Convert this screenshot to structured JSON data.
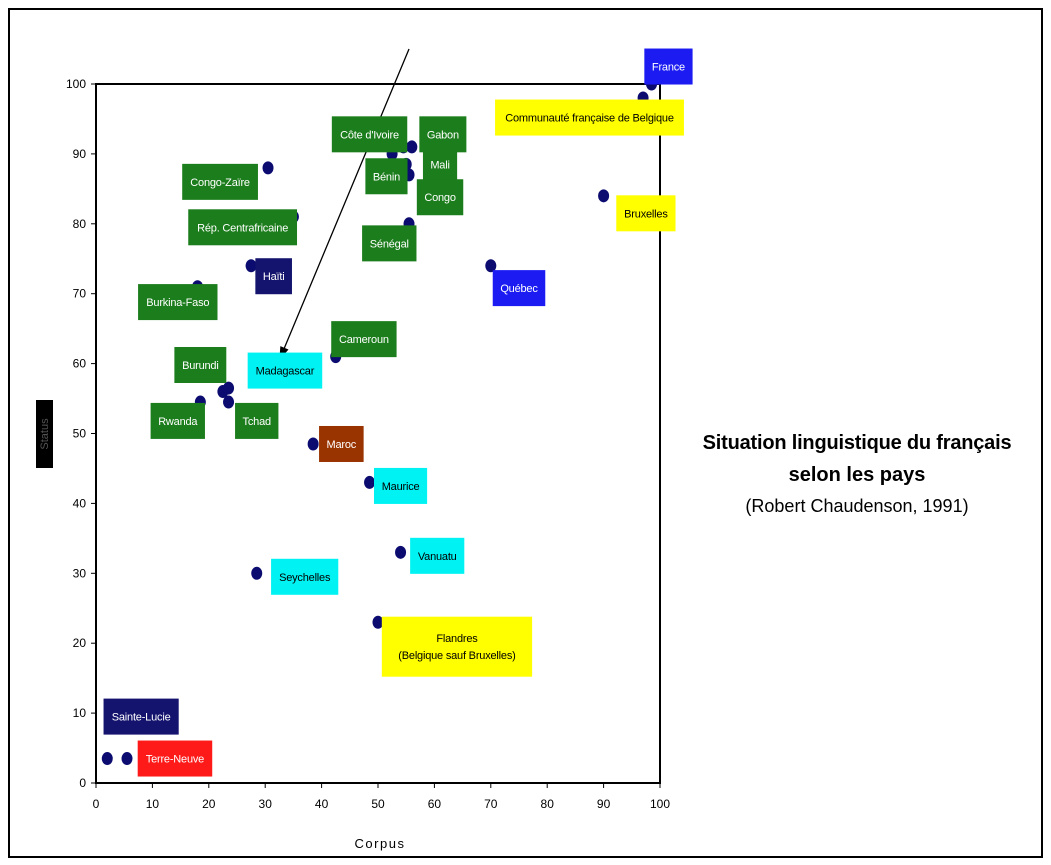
{
  "chart_data": {
    "type": "scatter",
    "title_lines": [
      "Situation linguistique du français",
      "selon les pays"
    ],
    "source": "(Robert Chaudenson, 1991)",
    "xlabel": "Corpus",
    "ylabel": "Status",
    "xlim": [
      0,
      100
    ],
    "ylim": [
      0,
      100
    ],
    "xticks": [
      0,
      10,
      20,
      30,
      40,
      50,
      60,
      70,
      80,
      90,
      100
    ],
    "yticks": [
      0,
      10,
      20,
      30,
      40,
      50,
      60,
      70,
      80,
      90,
      100
    ],
    "grid": false,
    "point_color": "#0b0b70",
    "category_colors": {
      "green": "#1c7d1c",
      "navy": "#14146e",
      "blue": "#1c1cf2",
      "yellow": "#ffff00",
      "cyan": "#00f2f2",
      "brown": "#993300",
      "red": "#ff1a1a"
    },
    "points": [
      {
        "x": 2,
        "y": 3.5
      },
      {
        "x": 5.5,
        "y": 3.5
      },
      {
        "x": 18,
        "y": 71
      },
      {
        "x": 18.5,
        "y": 54.5
      },
      {
        "x": 22.5,
        "y": 56
      },
      {
        "x": 23.5,
        "y": 56.5
      },
      {
        "x": 23.5,
        "y": 54.5
      },
      {
        "x": 27.5,
        "y": 74
      },
      {
        "x": 28.5,
        "y": 30
      },
      {
        "x": 30.5,
        "y": 88
      },
      {
        "x": 35,
        "y": 81
      },
      {
        "x": 38.5,
        "y": 48.5
      },
      {
        "x": 42.5,
        "y": 61
      },
      {
        "x": 48.5,
        "y": 43
      },
      {
        "x": 50,
        "y": 23
      },
      {
        "x": 52.5,
        "y": 90
      },
      {
        "x": 54,
        "y": 33
      },
      {
        "x": 54.5,
        "y": 91
      },
      {
        "x": 55,
        "y": 88.5
      },
      {
        "x": 55.5,
        "y": 87
      },
      {
        "x": 55.5,
        "y": 80
      },
      {
        "x": 56,
        "y": 91
      },
      {
        "x": 70,
        "y": 74
      },
      {
        "x": 90,
        "y": 84
      },
      {
        "x": 97,
        "y": 98
      },
      {
        "x": 98.5,
        "y": 100
      }
    ],
    "labels": [
      {
        "text": "France",
        "color": "blue",
        "anchor": [
          101.5,
          102.5
        ]
      },
      {
        "text": "Communauté française de Belgique",
        "color": "yellow",
        "anchor": [
          87.5,
          95.2
        ]
      },
      {
        "text": "Côte d'Ivoire",
        "color": "green",
        "anchor": [
          48.5,
          92.8
        ]
      },
      {
        "text": "Gabon",
        "color": "green",
        "anchor": [
          61.5,
          92.8
        ]
      },
      {
        "text": "Mali",
        "color": "green",
        "anchor": [
          61,
          88.5
        ]
      },
      {
        "text": "Bénin",
        "color": "green",
        "anchor": [
          51.5,
          86.8
        ]
      },
      {
        "text": "Congo",
        "color": "green",
        "anchor": [
          61,
          83.8
        ]
      },
      {
        "text": "Congo-Zaïre",
        "color": "green",
        "anchor": [
          22,
          86
        ]
      },
      {
        "text": "Bruxelles",
        "color": "yellow",
        "anchor": [
          97.5,
          81.5
        ]
      },
      {
        "text": "Rép. Centrafricaine",
        "color": "green",
        "anchor": [
          26,
          79.5
        ]
      },
      {
        "text": "Sénégal",
        "color": "green",
        "anchor": [
          52,
          77.2
        ]
      },
      {
        "text": "Haïti",
        "color": "navy",
        "anchor": [
          31.5,
          72.5
        ]
      },
      {
        "text": "Québec",
        "color": "blue",
        "anchor": [
          75,
          70.8
        ]
      },
      {
        "text": "Burkina-Faso",
        "color": "green",
        "anchor": [
          14.5,
          68.8
        ]
      },
      {
        "text": "Cameroun",
        "color": "green",
        "anchor": [
          47.5,
          63.5
        ]
      },
      {
        "text": "Burundi",
        "color": "green",
        "anchor": [
          18.5,
          59.8
        ]
      },
      {
        "text": "Madagascar",
        "color": "cyan",
        "anchor": [
          33.5,
          59
        ]
      },
      {
        "text": "Rwanda",
        "color": "green",
        "anchor": [
          14.5,
          51.8
        ]
      },
      {
        "text": "Tchad",
        "color": "green",
        "anchor": [
          28.5,
          51.8
        ]
      },
      {
        "text": "Maroc",
        "color": "brown",
        "anchor": [
          43.5,
          48.5
        ]
      },
      {
        "text": "Maurice",
        "color": "cyan",
        "anchor": [
          54,
          42.5
        ]
      },
      {
        "text": "Vanuatu",
        "color": "cyan",
        "anchor": [
          60.5,
          32.5
        ]
      },
      {
        "text": "Seychelles",
        "color": "cyan",
        "anchor": [
          37,
          29.5
        ]
      },
      {
        "text": "Flandres\n(Belgique sauf Bruxelles)",
        "color": "yellow",
        "anchor": [
          64,
          19.5
        ]
      },
      {
        "text": "Sainte-Lucie",
        "color": "navy",
        "anchor": [
          8,
          9.5
        ]
      },
      {
        "text": "Terre-Neuve",
        "color": "red",
        "anchor": [
          14,
          3.5
        ]
      }
    ],
    "arrow": {
      "from": [
        55.5,
        105
      ],
      "to": [
        32.5,
        60.5
      ]
    }
  }
}
